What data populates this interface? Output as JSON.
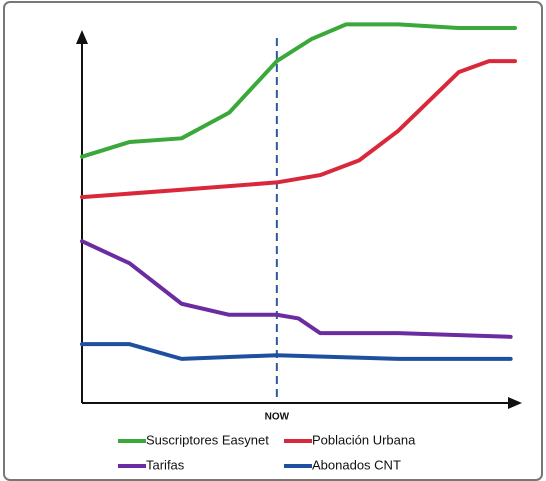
{
  "chart_data": {
    "type": "line",
    "xlim": [
      0,
      100
    ],
    "ylim": [
      0,
      105
    ],
    "annotation": {
      "text": "NOW",
      "x": 45
    },
    "series": [
      {
        "name": "Suscriptores Easynet",
        "color": "#3aa83a",
        "x": [
          0,
          11,
          23,
          34,
          45,
          53,
          61,
          73,
          87,
          100
        ],
        "values": [
          67,
          71,
          72,
          79,
          93,
          99,
          103,
          103,
          102,
          102
        ]
      },
      {
        "name": "Población Urbana",
        "color": "#d8283a",
        "x": [
          0,
          23,
          45,
          55,
          64,
          73,
          80,
          87,
          94,
          100
        ],
        "values": [
          56,
          58,
          60,
          62,
          66,
          74,
          82,
          90,
          93,
          93
        ]
      },
      {
        "name": "Tarifas",
        "color": "#6a2ca0",
        "x": [
          0,
          11,
          23,
          34,
          45,
          50,
          55,
          73,
          99
        ],
        "values": [
          44,
          38,
          27,
          24,
          24,
          23,
          19,
          19,
          18
        ]
      },
      {
        "name": "Abonados CNT",
        "color": "#1f4f9f",
        "x": [
          0,
          11,
          23,
          45,
          73,
          99
        ],
        "values": [
          16,
          16,
          12,
          13,
          12,
          12
        ]
      }
    ]
  }
}
